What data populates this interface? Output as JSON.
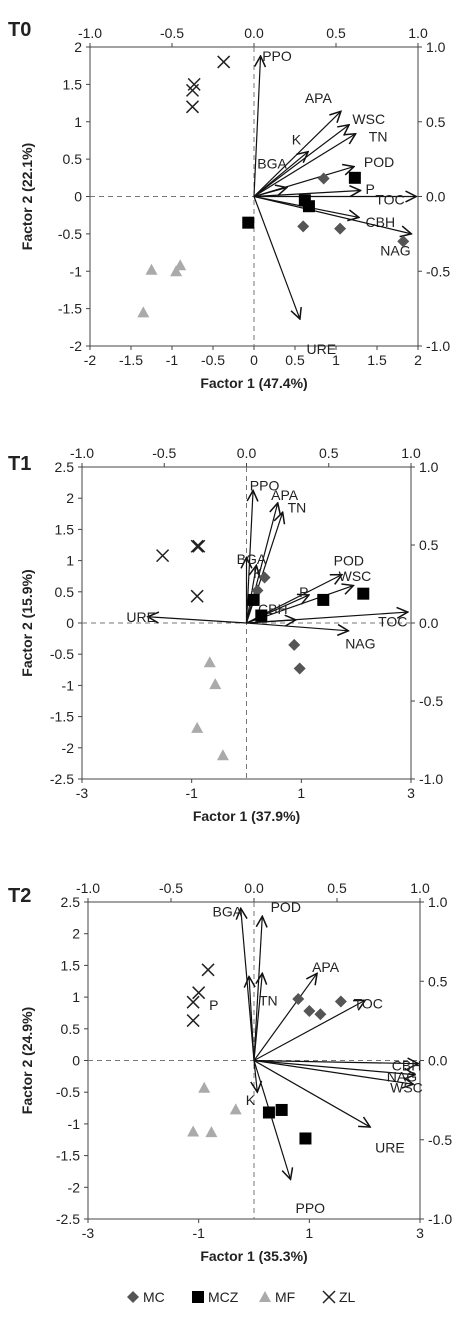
{
  "chart_data": [
    {
      "type": "scatter",
      "title": "T0",
      "xlabel": "Factor 1 (47.4%)",
      "ylabel": "Factor 2 (22.1%)",
      "xlim": [
        -2,
        2
      ],
      "ylim": [
        -2,
        2
      ],
      "xticks": [
        "-2",
        "-1.5",
        "-1",
        "-0.5",
        "0",
        "0.5",
        "1",
        "1.5",
        "2"
      ],
      "yticks": [
        "-2",
        "-1.5",
        "-1",
        "-0.5",
        "0",
        "0.5",
        "1",
        "1.5",
        "2"
      ],
      "top_axis": {
        "lim": [
          -1,
          1
        ],
        "ticks": [
          "-1.0",
          "-0.5",
          "0.0",
          "0.5",
          "1.0"
        ]
      },
      "right_axis": {
        "lim": [
          -1,
          1
        ],
        "ticks": [
          "-1.0",
          "-0.5",
          "0.0",
          "0.5",
          "1.0"
        ]
      },
      "series": [
        {
          "name": "MC",
          "marker": "diamond",
          "x": [
            0.6,
            0.85,
            1.05,
            1.82
          ],
          "y": [
            -0.4,
            0.24,
            -0.43,
            -0.6
          ]
        },
        {
          "name": "MCZ",
          "marker": "square",
          "x": [
            -0.07,
            0.62,
            0.67,
            1.23
          ],
          "y": [
            -0.35,
            -0.05,
            -0.13,
            0.25
          ]
        },
        {
          "name": "MF",
          "marker": "triangle",
          "x": [
            -1.35,
            -1.25,
            -0.95,
            -0.9
          ],
          "y": [
            -1.55,
            -0.98,
            -1.0,
            -0.92
          ]
        },
        {
          "name": "ZL",
          "marker": "x",
          "x": [
            -0.75,
            -0.73,
            -0.75,
            -0.37
          ],
          "y": [
            1.42,
            1.5,
            1.2,
            1.8
          ]
        }
      ],
      "vectors": [
        {
          "label": "PPO",
          "x": 0.04,
          "y": 0.94,
          "lx": 0.05,
          "ly": 0.94
        },
        {
          "label": "APA",
          "x": 0.53,
          "y": 0.57,
          "lx": 0.31,
          "ly": 0.66
        },
        {
          "label": "WSC",
          "x": 0.58,
          "y": 0.48,
          "lx": 0.6,
          "ly": 0.52
        },
        {
          "label": "TN",
          "x": 0.62,
          "y": 0.42,
          "lx": 0.7,
          "ly": 0.4
        },
        {
          "label": "K",
          "x": 0.33,
          "y": 0.3,
          "lx": 0.23,
          "ly": 0.38
        },
        {
          "label": "BGA",
          "x": 0.2,
          "y": 0.06,
          "lx": 0.02,
          "ly": 0.22
        },
        {
          "label": "POD",
          "x": 0.61,
          "y": 0.2,
          "lx": 0.67,
          "ly": 0.23
        },
        {
          "label": "P",
          "x": 0.65,
          "y": 0.04,
          "lx": 0.68,
          "ly": 0.05
        },
        {
          "label": "TOC",
          "x": 0.99,
          "y": 0.0,
          "lx": 0.74,
          "ly": -0.02
        },
        {
          "label": "CBH",
          "x": 0.64,
          "y": -0.14,
          "lx": 0.68,
          "ly": -0.17
        },
        {
          "label": "NAG",
          "x": 0.96,
          "y": -0.25,
          "lx": 0.77,
          "ly": -0.36
        },
        {
          "label": "URE",
          "x": 0.28,
          "y": -0.82,
          "lx": 0.32,
          "ly": -1.02
        }
      ]
    },
    {
      "type": "scatter",
      "title": "T1",
      "xlabel": "Factor 1 (37.9%)",
      "ylabel": "Factor 2 (15.9%)",
      "xlim": [
        -3,
        3
      ],
      "ylim": [
        -2.5,
        2.5
      ],
      "xticks": [
        "-3",
        "-1",
        "1",
        "3"
      ],
      "yticks": [
        "-2.5",
        "-2",
        "-1.5",
        "-1",
        "-0.5",
        "0",
        "0.5",
        "1",
        "1.5",
        "2",
        "2.5"
      ],
      "top_axis": {
        "lim": [
          -1,
          1
        ],
        "ticks": [
          "-1.0",
          "-0.5",
          "0.0",
          "0.5",
          "1.0"
        ]
      },
      "right_axis": {
        "lim": [
          -1,
          1
        ],
        "ticks": [
          "-1.0",
          "-0.5",
          "0.0",
          "0.5",
          "1.0"
        ]
      },
      "series": [
        {
          "name": "MC",
          "marker": "diamond",
          "x": [
            0.33,
            0.2,
            0.87,
            0.97
          ],
          "y": [
            0.73,
            0.52,
            -0.35,
            -0.73
          ]
        },
        {
          "name": "MCZ",
          "marker": "square",
          "x": [
            0.13,
            0.27,
            1.4,
            2.13
          ],
          "y": [
            0.37,
            0.12,
            0.37,
            0.47
          ]
        },
        {
          "name": "MF",
          "marker": "triangle",
          "x": [
            -0.67,
            -0.57,
            -0.9,
            -0.43
          ],
          "y": [
            -0.63,
            -0.98,
            -1.68,
            -2.12
          ]
        },
        {
          "name": "ZL",
          "marker": "x",
          "x": [
            -0.9,
            -0.87,
            -1.53,
            -0.9
          ],
          "y": [
            1.23,
            1.23,
            1.08,
            0.43
          ]
        }
      ],
      "vectors": [
        {
          "label": "PPO",
          "x": 0.04,
          "y": 0.85,
          "lx": 0.02,
          "ly": 0.88
        },
        {
          "label": "APA",
          "x": 0.19,
          "y": 0.77,
          "lx": 0.15,
          "ly": 0.82
        },
        {
          "label": "TN",
          "x": 0.22,
          "y": 0.71,
          "lx": 0.25,
          "ly": 0.74
        },
        {
          "label": "BGA",
          "x": 0.0,
          "y": 0.42,
          "lx": -0.06,
          "ly": 0.41
        },
        {
          "label": "K",
          "x": 0.06,
          "y": 0.37,
          "lx": 0.04,
          "ly": 0.32
        },
        {
          "label": "POD",
          "x": 0.58,
          "y": 0.31,
          "lx": 0.53,
          "ly": 0.4
        },
        {
          "label": "WSC",
          "x": 0.65,
          "y": 0.24,
          "lx": 0.56,
          "ly": 0.3
        },
        {
          "label": "P",
          "x": 0.38,
          "y": 0.18,
          "lx": 0.32,
          "ly": 0.2
        },
        {
          "label": "CBH",
          "x": 0.3,
          "y": 0.02,
          "lx": 0.07,
          "ly": 0.09
        },
        {
          "label": "TOC",
          "x": 0.98,
          "y": 0.07,
          "lx": 0.8,
          "ly": 0.01
        },
        {
          "label": "NAG",
          "x": 0.62,
          "y": -0.05,
          "lx": 0.6,
          "ly": -0.13
        },
        {
          "label": "URE",
          "x": -0.6,
          "y": 0.04,
          "lx": -0.73,
          "ly": 0.04
        }
      ]
    },
    {
      "type": "scatter",
      "title": "T2",
      "xlabel": "Factor 1 (35.3%)",
      "ylabel": "Factor 2 (24.9%)",
      "xlim": [
        -3,
        3
      ],
      "ylim": [
        -2.5,
        2.5
      ],
      "xticks": [
        "-3",
        "-1",
        "1",
        "3"
      ],
      "yticks": [
        "-2.5",
        "-2",
        "-1.5",
        "-1",
        "-0.5",
        "0",
        "0.5",
        "1",
        "1.5",
        "2",
        "2.5"
      ],
      "top_axis": {
        "lim": [
          -1,
          1
        ],
        "ticks": [
          "-1.0",
          "-0.5",
          "0.0",
          "0.5",
          "1.0"
        ]
      },
      "right_axis": {
        "lim": [
          -1,
          1
        ],
        "ticks": [
          "-1.0",
          "-0.5",
          "0.0",
          "0.5",
          "1.0"
        ]
      },
      "series": [
        {
          "name": "MC",
          "marker": "diamond",
          "x": [
            0.8,
            1.0,
            1.2,
            1.57
          ],
          "y": [
            0.97,
            0.78,
            0.73,
            0.93
          ]
        },
        {
          "name": "MCZ",
          "marker": "square",
          "x": [
            0.27,
            0.5,
            0.93
          ],
          "y": [
            -0.82,
            -0.78,
            -1.23
          ]
        },
        {
          "name": "MF",
          "marker": "triangle",
          "x": [
            -0.9,
            -1.1,
            -0.77,
            -0.33
          ],
          "y": [
            -0.43,
            -1.12,
            -1.13,
            -0.77
          ]
        },
        {
          "name": "ZL",
          "marker": "x",
          "x": [
            -0.83,
            -1.0,
            -1.1,
            -1.1
          ],
          "y": [
            1.43,
            1.07,
            0.92,
            0.63
          ]
        }
      ],
      "vectors": [
        {
          "label": "BGA",
          "x": -0.08,
          "y": 0.96,
          "lx": -0.25,
          "ly": 0.94
        },
        {
          "label": "POD",
          "x": 0.05,
          "y": 0.91,
          "lx": 0.1,
          "ly": 0.97
        },
        {
          "label": "P",
          "x": -0.03,
          "y": 0.53,
          "lx": -0.27,
          "ly": 0.35
        },
        {
          "label": "TN",
          "x": 0.05,
          "y": 0.55,
          "lx": 0.03,
          "ly": 0.38
        },
        {
          "label": "APA",
          "x": 0.38,
          "y": 0.55,
          "lx": 0.35,
          "ly": 0.59
        },
        {
          "label": "TOC",
          "x": 0.67,
          "y": 0.38,
          "lx": 0.6,
          "ly": 0.36
        },
        {
          "label": "CBH",
          "x": 0.99,
          "y": -0.02,
          "lx": 0.83,
          "ly": -0.03
        },
        {
          "label": "NAG",
          "x": 0.97,
          "y": -0.09,
          "lx": 0.8,
          "ly": -0.1
        },
        {
          "label": "WSC",
          "x": 0.96,
          "y": -0.15,
          "lx": 0.82,
          "ly": -0.17
        },
        {
          "label": "K",
          "x": 0.02,
          "y": -0.2,
          "lx": -0.05,
          "ly": -0.25
        },
        {
          "label": "URE",
          "x": 0.7,
          "y": -0.42,
          "lx": 0.73,
          "ly": -0.55
        },
        {
          "label": "PPO",
          "x": 0.22,
          "y": -0.75,
          "lx": 0.25,
          "ly": -0.93
        }
      ]
    }
  ],
  "legend": {
    "placement": "bottom",
    "items": [
      {
        "name": "MC",
        "marker": "diamond"
      },
      {
        "name": "MCZ",
        "marker": "square"
      },
      {
        "name": "MF",
        "marker": "triangle"
      },
      {
        "name": "ZL",
        "marker": "x"
      }
    ]
  },
  "colors": {
    "MC": "#555555",
    "MCZ": "#000000",
    "MF": "#aaaaaa",
    "ZL": "#222222",
    "axis": "#444444",
    "guide": "#777777"
  }
}
